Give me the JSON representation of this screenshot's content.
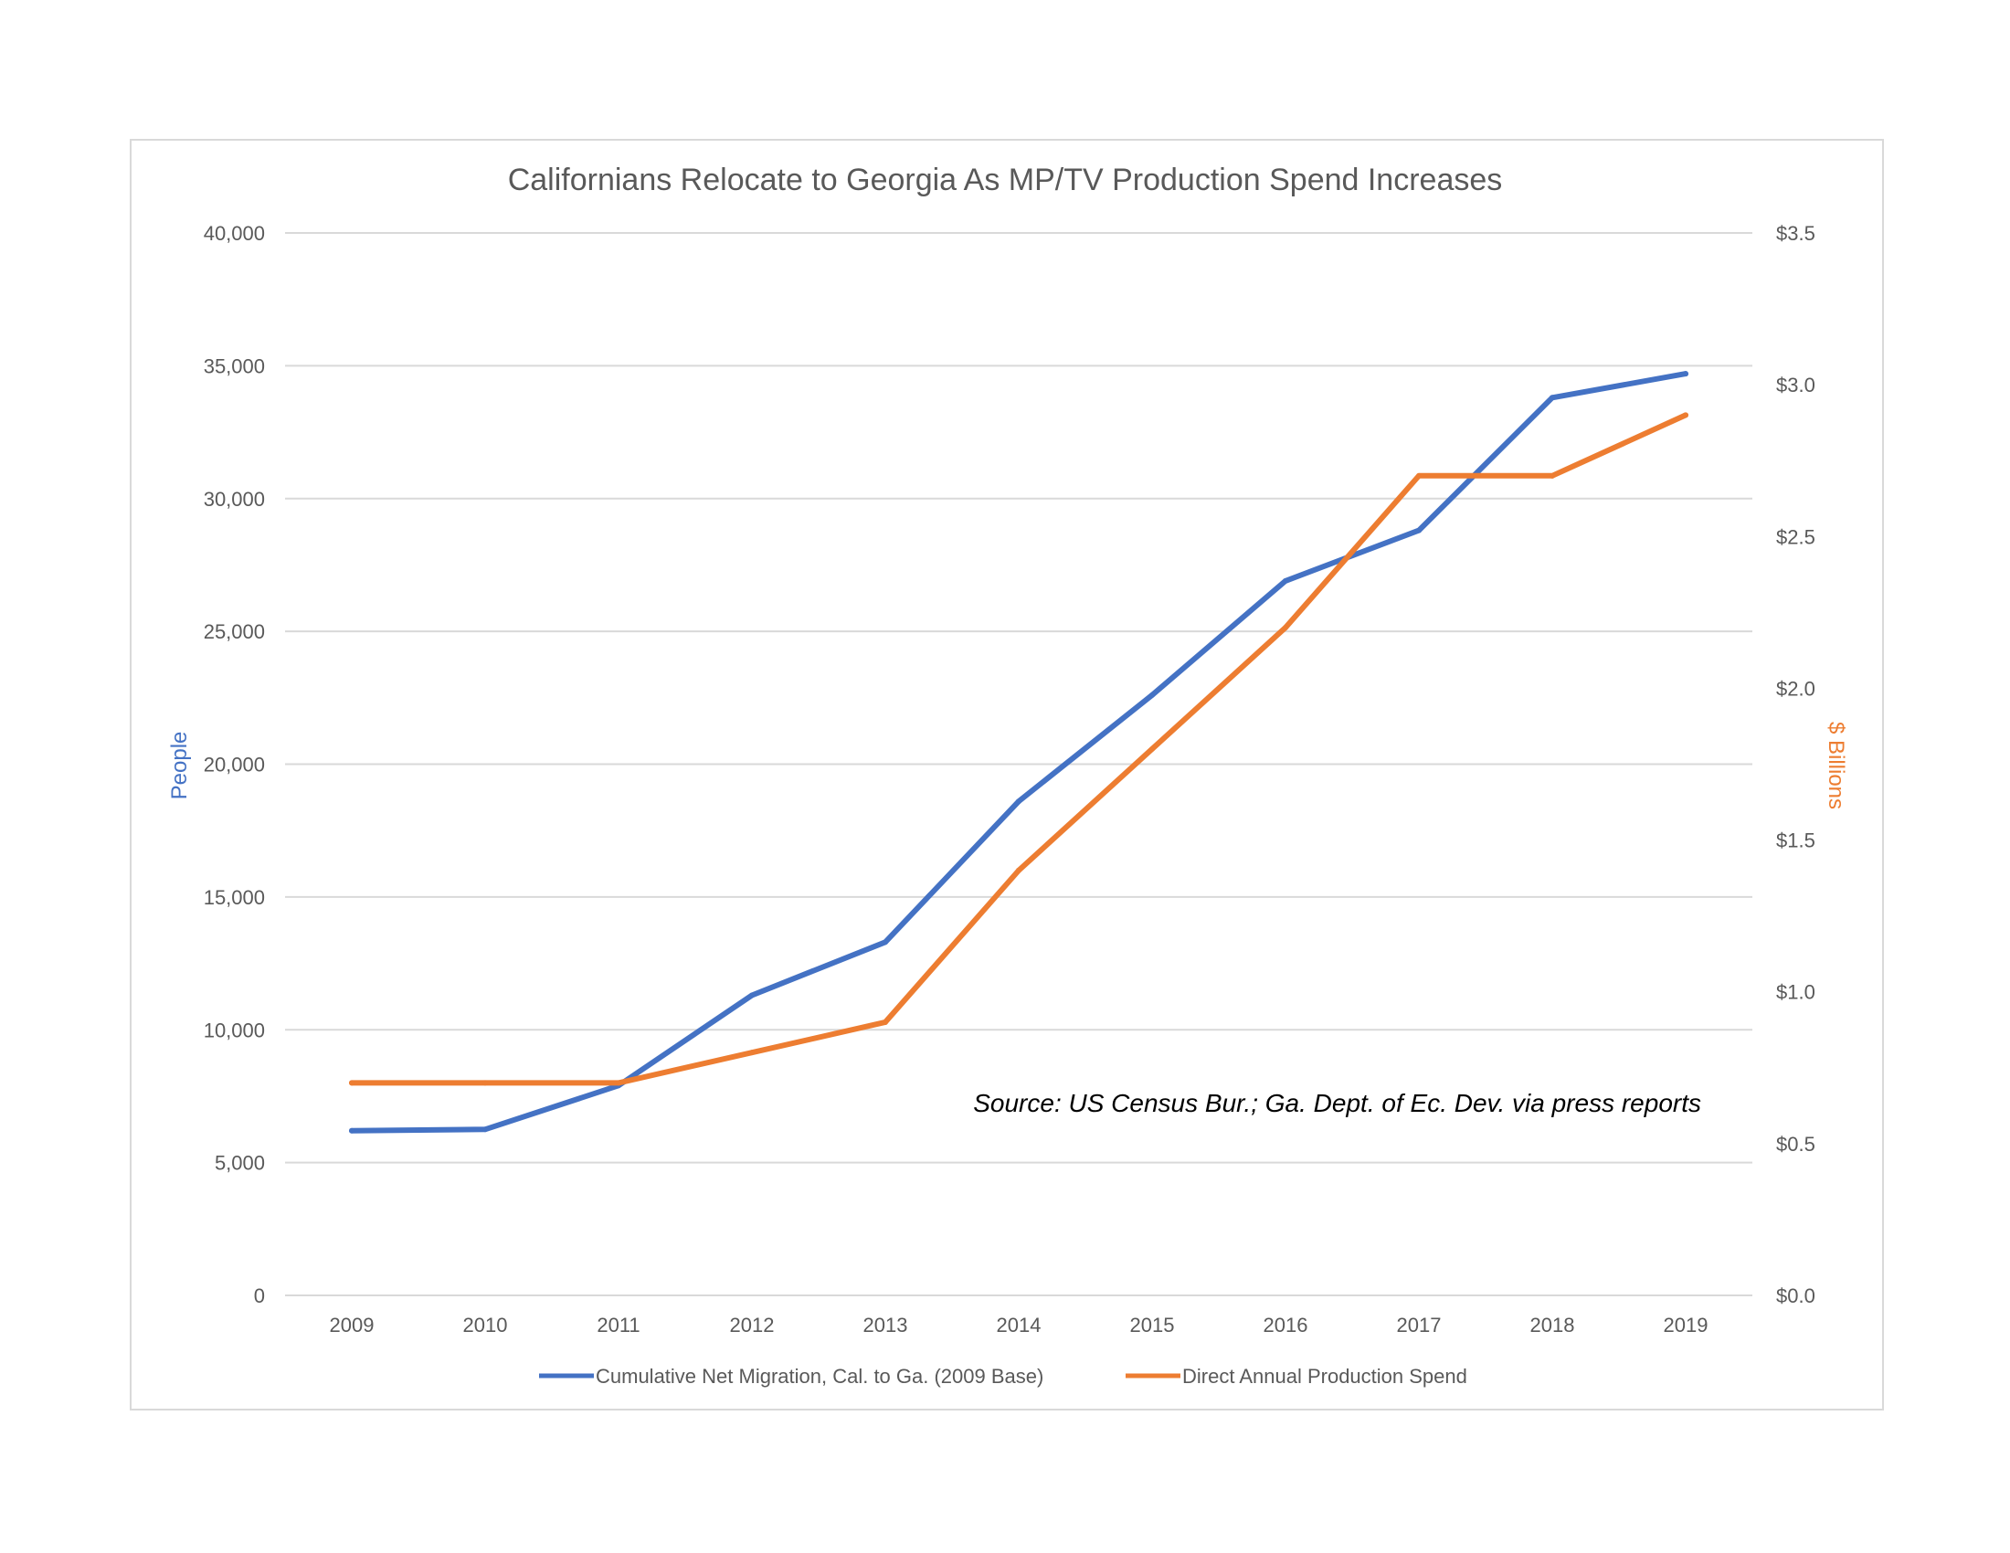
{
  "chart_data": {
    "type": "line",
    "title": "Californians Relocate to Georgia As MP/TV Production Spend Increases",
    "categories": [
      "2009",
      "2010",
      "2011",
      "2012",
      "2013",
      "2014",
      "2015",
      "2016",
      "2017",
      "2018",
      "2019"
    ],
    "y_left": {
      "label": "People",
      "label_color": "#4472c4",
      "ylim": [
        0,
        40000
      ],
      "ticks": [
        "0",
        "5,000",
        "10,000",
        "15,000",
        "20,000",
        "25,000",
        "30,000",
        "35,000",
        "40,000"
      ]
    },
    "y_right": {
      "label": "$ Billions",
      "label_color": "#ed7d31",
      "ylim": [
        0,
        3.5
      ],
      "ticks": [
        "$0.0",
        "$0.5",
        "$1.0",
        "$1.5",
        "$2.0",
        "$2.5",
        "$3.0",
        "$3.5"
      ]
    },
    "series": [
      {
        "name": "Cumulative Net Migration, Cal. to Ga. (2009 Base)",
        "axis": "left",
        "color": "#4472c4",
        "values": [
          6200,
          6250,
          7900,
          11300,
          13300,
          18600,
          22600,
          26900,
          28800,
          33800,
          34700
        ]
      },
      {
        "name": "Direct Annual Production Spend",
        "axis": "right",
        "color": "#ed7d31",
        "values": [
          0.7,
          0.7,
          0.7,
          0.8,
          0.9,
          1.4,
          1.8,
          2.2,
          2.7,
          2.7,
          2.9
        ]
      }
    ],
    "grid": true,
    "legend_position": "bottom",
    "annotation": "Source: US Census Bur.; Ga. Dept. of Ec. Dev. via press reports"
  }
}
